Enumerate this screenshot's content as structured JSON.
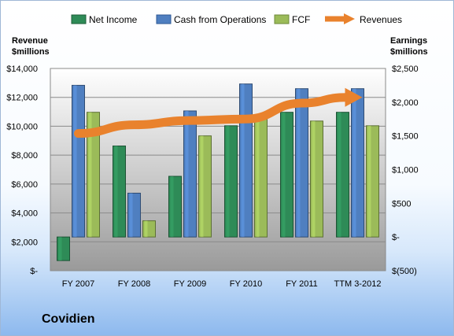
{
  "company": "Covidien",
  "legend": {
    "net_income": "Net Income",
    "cfo": "Cash from Operations",
    "fcf": "FCF",
    "revenues": "Revenues"
  },
  "axes": {
    "left_title_line1": "Revenue",
    "left_title_line2": "$millions",
    "right_title_line1": "Earnings",
    "right_title_line2": "$millions"
  },
  "colors": {
    "net_income": "#2e8b57",
    "cfo": "#4f7fc0",
    "fcf": "#9bbb59",
    "revenues": "#e9822d"
  },
  "chart_data": {
    "type": "bar",
    "categories": [
      "FY 2007",
      "FY 2008",
      "FY 2009",
      "FY 2010",
      "FY 2011",
      "TTM 3-2012"
    ],
    "series": [
      {
        "name": "Net Income",
        "axis": "right",
        "values": [
          -350,
          1350,
          900,
          1650,
          1850,
          1850
        ]
      },
      {
        "name": "Cash from Operations",
        "axis": "right",
        "values": [
          2250,
          650,
          1870,
          2270,
          2200,
          2200
        ]
      },
      {
        "name": "FCF",
        "axis": "right",
        "values": [
          1850,
          240,
          1500,
          1780,
          1720,
          1650
        ]
      },
      {
        "name": "Revenues",
        "axis": "left",
        "type": "line",
        "values": [
          9500,
          10100,
          10400,
          10500,
          11600,
          12000
        ]
      }
    ],
    "left_axis": {
      "min": 0,
      "max": 14000,
      "step": 2000,
      "ticks": [
        "$-",
        "$2,000",
        "$4,000",
        "$6,000",
        "$8,000",
        "$10,000",
        "$12,000",
        "$14,000"
      ]
    },
    "right_axis": {
      "min": -500,
      "max": 2500,
      "step": 500,
      "ticks": [
        "$(500)",
        "$-",
        "$500",
        "$1,000",
        "$1,500",
        "$2,000",
        "$2,500"
      ]
    },
    "legend_position": "top",
    "grid": true
  }
}
